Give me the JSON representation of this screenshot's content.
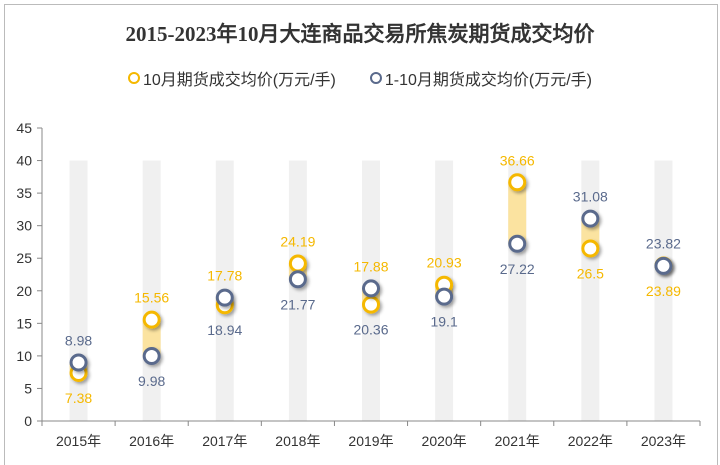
{
  "chart_data": {
    "type": "dot-range",
    "title": "2015-2023年10月大连商品交易所焦炭期货成交均价",
    "categories": [
      "2015年",
      "2016年",
      "2017年",
      "2018年",
      "2019年",
      "2020年",
      "2021年",
      "2022年",
      "2023年"
    ],
    "series": [
      {
        "name": "10月期货成交均价(万元/手)",
        "color": "#f5b800",
        "values": [
          7.38,
          15.56,
          17.78,
          24.19,
          17.88,
          20.93,
          36.66,
          26.5,
          23.89
        ]
      },
      {
        "name": "1-10月期货成交均价(万元/手)",
        "color": "#5a6a8c",
        "values": [
          8.98,
          9.98,
          18.94,
          21.77,
          20.36,
          19.1,
          27.22,
          31.08,
          23.82
        ]
      }
    ],
    "yticks": [
      0,
      5,
      10,
      15,
      20,
      25,
      30,
      35,
      40,
      45
    ],
    "ylim": [
      0,
      45
    ],
    "legend": "top",
    "grid": false
  }
}
